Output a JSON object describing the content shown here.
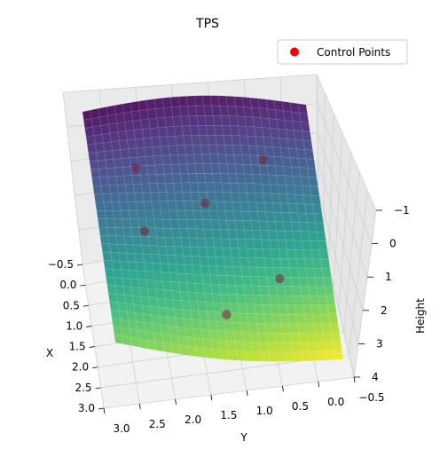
{
  "chart_data": {
    "type": "surface3d",
    "title": "TPS",
    "xlabel": "X",
    "ylabel": "Y",
    "zlabel": "Height",
    "xlim": [
      -0.5,
      3.0
    ],
    "ylim": [
      -0.5,
      3.0
    ],
    "zlim": [
      -1,
      4
    ],
    "x_ticks": [
      "−0.5",
      "0.0",
      "0.5",
      "1.0",
      "1.5",
      "2.0",
      "2.5",
      "3.0"
    ],
    "y_ticks": [
      "3.0",
      "2.5",
      "2.0",
      "1.5",
      "1.0",
      "0.5",
      "0.0",
      "−0.5"
    ],
    "z_ticks": [
      "−1",
      "0",
      "1",
      "2",
      "3",
      "4"
    ],
    "legend": {
      "label": "Control Points",
      "marker_color": "#ff0000",
      "placement": "upper-right"
    },
    "colormap": "viridis",
    "control_points": [
      {
        "x": 0.4,
        "y": 2.3,
        "z": -0.3
      },
      {
        "x": 0.3,
        "y": 0.3,
        "z": -0.1
      },
      {
        "x": 0.9,
        "y": 1.3,
        "z": 0.2
      },
      {
        "x": 1.3,
        "y": 2.3,
        "z": 0.7
      },
      {
        "x": 1.9,
        "y": 0.3,
        "z": 1.5
      },
      {
        "x": 2.4,
        "y": 1.2,
        "z": 2.6
      }
    ]
  }
}
